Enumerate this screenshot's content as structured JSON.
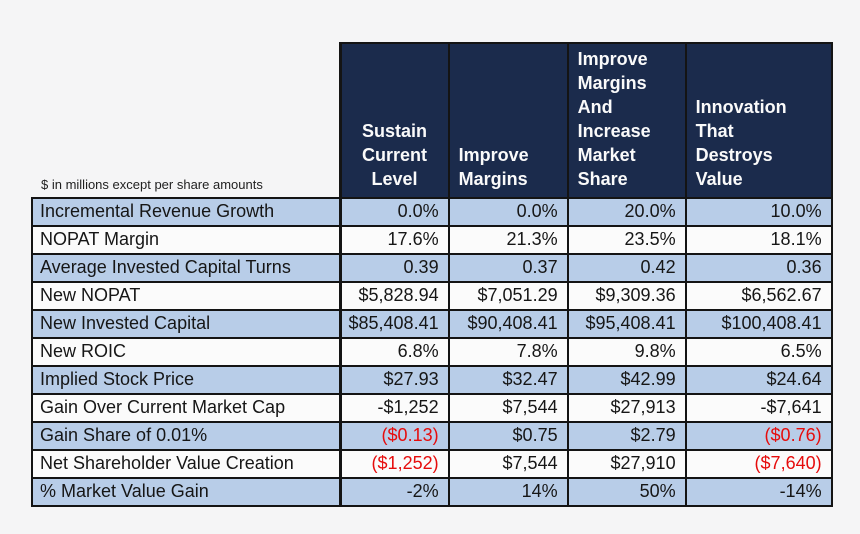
{
  "note": "$ in millions except per share amounts",
  "colors": {
    "canvas_bg": "#f5f5f6",
    "header_bg": "#1b2b4c",
    "header_text": "#fafafa",
    "band_blue": "#b8cde8",
    "band_white": "#fbfbfb",
    "border": "#141414",
    "negative_text": "#e60c0c"
  },
  "chart_data": {
    "type": "table",
    "columns": [
      "Sustain\nCurrent\nLevel",
      "Improve\nMargins",
      "Improve\nMargins\nAnd\nIncrease\nMarket\nShare",
      "Innovation\nThat\nDestroys\nValue"
    ],
    "rows": [
      {
        "label": "Incremental Revenue Growth",
        "values": [
          "0.0%",
          "0.0%",
          "20.0%",
          "10.0%"
        ]
      },
      {
        "label": "NOPAT Margin",
        "values": [
          "17.6%",
          "21.3%",
          "23.5%",
          "18.1%"
        ]
      },
      {
        "label": "Average Invested Capital Turns",
        "values": [
          "0.39",
          "0.37",
          "0.42",
          "0.36"
        ]
      },
      {
        "label": "New NOPAT",
        "values": [
          "$5,828.94",
          "$7,051.29",
          "$9,309.36",
          "$6,562.67"
        ]
      },
      {
        "label": "New Invested Capital",
        "values": [
          "$85,408.41",
          "$90,408.41",
          "$95,408.41",
          "$100,408.41"
        ]
      },
      {
        "label": "New ROIC",
        "values": [
          "6.8%",
          "7.8%",
          "9.8%",
          "6.5%"
        ]
      },
      {
        "label": "Implied Stock Price",
        "values": [
          "$27.93",
          "$32.47",
          "$42.99",
          "$24.64"
        ]
      },
      {
        "label": "Gain Over Current Market Cap",
        "values": [
          "-$1,252",
          "$7,544",
          "$27,913",
          "-$7,641"
        ]
      },
      {
        "label": "Gain Share of 0.01%",
        "values": [
          "($0.13)",
          "$0.75",
          "$2.79",
          "($0.76)"
        ]
      },
      {
        "label": "Net Shareholder Value Creation",
        "values": [
          "($1,252)",
          "$7,544",
          "$27,910",
          "($7,640)"
        ]
      },
      {
        "label": "% Market Value Gain",
        "values": [
          "-2%",
          "14%",
          "50%",
          "-14%"
        ]
      }
    ]
  }
}
